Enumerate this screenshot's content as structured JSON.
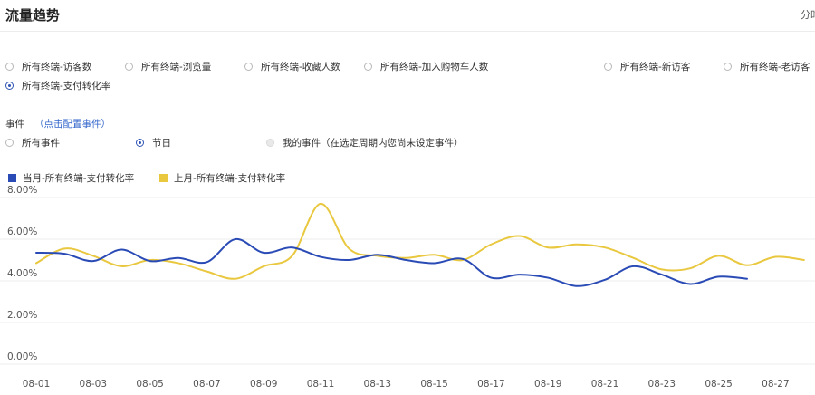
{
  "header": {
    "title": "流量趋势",
    "corner_text": "分时"
  },
  "metrics": [
    {
      "label": "所有终端-访客数",
      "checked": false
    },
    {
      "label": "所有终端-浏览量",
      "checked": false
    },
    {
      "label": "所有终端-收藏人数",
      "checked": false
    },
    {
      "label": "所有终端-加入购物车人数",
      "checked": false
    },
    {
      "label": "所有终端-新访客",
      "checked": false
    },
    {
      "label": "所有终端-老访客",
      "checked": false
    },
    {
      "label": "所有终端-支付转化率",
      "checked": true
    }
  ],
  "events": {
    "label": "事件",
    "config_link": "（点击配置事件）",
    "options": [
      {
        "label": "所有事件",
        "state": "unchecked"
      },
      {
        "label": "节日",
        "state": "checked"
      },
      {
        "label": "我的事件（在选定周期内您尚未设定事件）",
        "state": "disabled"
      }
    ]
  },
  "chart_data": {
    "type": "line",
    "y_unit": "%",
    "ylim": [
      0,
      8
    ],
    "y_ticks": [
      "8.00%",
      "6.00%",
      "4.00%",
      "2.00%",
      "0.00%"
    ],
    "x_ticks": [
      "08-01",
      "08-03",
      "08-05",
      "08-07",
      "08-09",
      "08-11",
      "08-13",
      "08-15",
      "08-17",
      "08-19",
      "08-21",
      "08-23",
      "08-25",
      "08-27"
    ],
    "x": [
      "08-01",
      "08-02",
      "08-03",
      "08-04",
      "08-05",
      "08-06",
      "08-07",
      "08-08",
      "08-09",
      "08-10",
      "08-11",
      "08-12",
      "08-13",
      "08-14",
      "08-15",
      "08-16",
      "08-17",
      "08-18",
      "08-19",
      "08-20",
      "08-21",
      "08-22",
      "08-23",
      "08-24",
      "08-25",
      "08-26",
      "08-27",
      "08-28"
    ],
    "grid": true,
    "legend_position": "top-left",
    "series": [
      {
        "name": "当月-所有终端-支付转化率",
        "color": "#2a4bb5",
        "values": [
          5.35,
          5.3,
          4.95,
          5.5,
          4.95,
          5.1,
          4.9,
          6.0,
          5.35,
          5.6,
          5.15,
          5.0,
          5.25,
          5.0,
          4.85,
          5.05,
          4.15,
          4.3,
          4.15,
          3.75,
          4.05,
          4.7,
          4.3,
          3.85,
          4.2,
          4.1,
          null,
          null
        ],
        "colorName": "blue"
      },
      {
        "name": "上月-所有终端-支付转化率",
        "color": "#e9c840",
        "values": [
          4.85,
          5.55,
          5.2,
          4.7,
          5.0,
          4.85,
          4.45,
          4.1,
          4.7,
          5.2,
          7.7,
          5.55,
          5.2,
          5.1,
          5.25,
          5.0,
          5.75,
          6.15,
          5.6,
          5.75,
          5.6,
          5.1,
          4.55,
          4.6,
          5.2,
          4.75,
          5.15,
          5.0
        ],
        "colorName": "yellow"
      }
    ]
  }
}
